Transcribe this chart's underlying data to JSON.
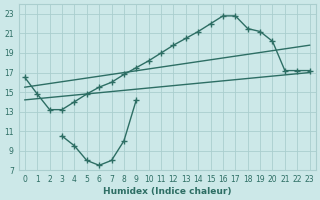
{
  "bg_color": "#cce8e8",
  "grid_color": "#aacece",
  "line_color": "#2d6e64",
  "line_width": 1.0,
  "marker": "+",
  "marker_size": 4,
  "xlabel": "Humidex (Indice chaleur)",
  "xlim": [
    -0.5,
    23.5
  ],
  "ylim": [
    7,
    24
  ],
  "xticks": [
    0,
    1,
    2,
    3,
    4,
    5,
    6,
    7,
    8,
    9,
    10,
    11,
    12,
    13,
    14,
    15,
    16,
    17,
    18,
    19,
    20,
    21,
    22,
    23
  ],
  "yticks": [
    7,
    9,
    11,
    13,
    15,
    17,
    19,
    21,
    23
  ],
  "curve1_x": [
    0,
    1,
    2,
    3,
    4,
    5,
    6,
    7,
    8,
    9,
    10,
    11,
    12,
    13,
    14,
    15,
    16,
    17,
    18,
    19,
    20,
    21,
    22,
    23
  ],
  "curve1_y": [
    16.5,
    14.8,
    13.2,
    13.2,
    14.0,
    14.8,
    15.5,
    16.0,
    16.8,
    17.5,
    18.2,
    19.0,
    19.8,
    20.5,
    21.2,
    22.0,
    22.8,
    22.8,
    21.5,
    21.2,
    20.2,
    17.2,
    17.2,
    17.2
  ],
  "curve2_x": [
    3,
    4,
    5,
    6,
    7,
    8,
    9
  ],
  "curve2_y": [
    10.5,
    9.5,
    8.0,
    7.5,
    8.0,
    10.0,
    14.2
  ],
  "line1_x": [
    0,
    23
  ],
  "line1_y": [
    15.5,
    19.8
  ],
  "line2_x": [
    0,
    23
  ],
  "line2_y": [
    14.2,
    17.0
  ]
}
